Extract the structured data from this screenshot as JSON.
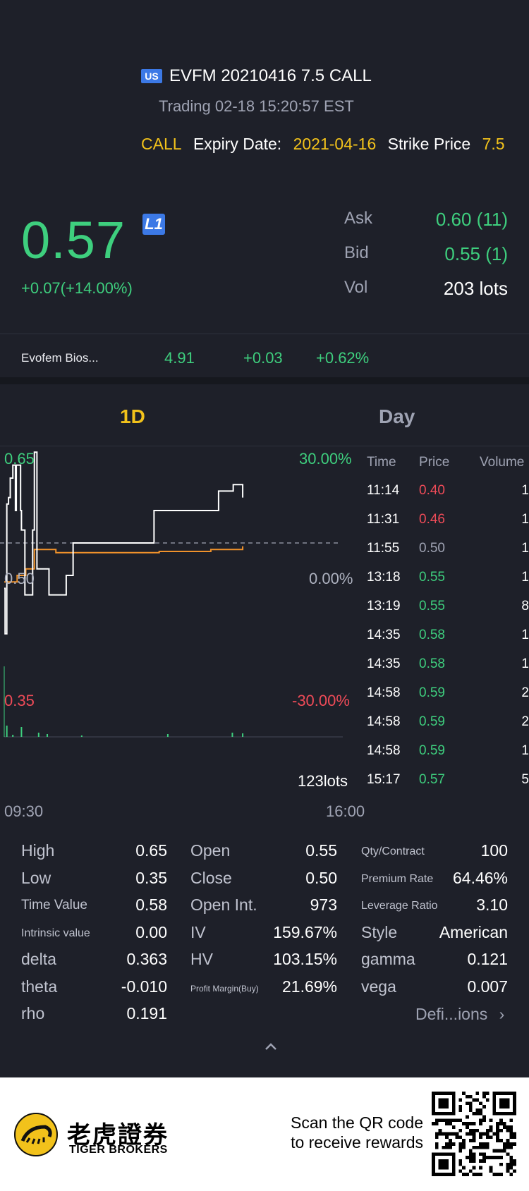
{
  "header": {
    "market_badge": "US",
    "title": "EVFM 20210416 7.5 CALL",
    "trading_status": "Trading  02-18 15:20:57 EST",
    "option_type": "CALL",
    "expiry_label": "Expiry Date:",
    "expiry_value": "2021-04-16",
    "strike_label": "Strike Price",
    "strike_value": "7.5"
  },
  "quote": {
    "price": "0.57",
    "level_badge": "L1",
    "change": "+0.07(+14.00%)",
    "ask_label": "Ask",
    "ask_value": "0.60 (11)",
    "bid_label": "Bid",
    "bid_value": "0.55 (1)",
    "vol_label": "Vol",
    "vol_value": "203 lots"
  },
  "underlying": {
    "name": "Evofem Bios...",
    "price": "4.91",
    "change": "+0.03",
    "change_pct": "+0.62%"
  },
  "tabs": {
    "intraday": "1D",
    "day": "Day"
  },
  "chart": {
    "y_high": "0.65",
    "y_low": "0.35",
    "y_mid": "0.50",
    "pct_high": "30.00%",
    "pct_mid": "0.00%",
    "pct_low": "-30.00%",
    "volume_label": "123lots",
    "time_start": "09:30",
    "time_end": "16:00"
  },
  "chart_data": {
    "type": "line",
    "x_range": [
      "09:30",
      "16:00"
    ],
    "ylim": [
      0.35,
      0.65
    ],
    "reference": 0.5,
    "series": [
      {
        "values_desc": "price",
        "points": [
          [
            "09:30",
            0.43
          ],
          [
            "09:31",
            0.36
          ],
          [
            "09:32",
            0.36
          ],
          [
            "09:33",
            0.56
          ],
          [
            "09:35",
            0.57
          ],
          [
            "09:37",
            0.6
          ],
          [
            "09:38",
            0.6
          ],
          [
            "09:40",
            0.62
          ],
          [
            "09:42",
            0.62
          ],
          [
            "09:43",
            0.55
          ],
          [
            "09:44",
            0.62
          ],
          [
            "09:48",
            0.62
          ],
          [
            "09:49",
            0.55
          ],
          [
            "09:50",
            0.52
          ],
          [
            "09:54",
            0.42
          ],
          [
            "09:56",
            0.42
          ],
          [
            "09:58",
            0.42
          ],
          [
            "10:03",
            0.52
          ],
          [
            "10:05",
            0.64
          ],
          [
            "10:08",
            0.46
          ],
          [
            "10:18",
            0.46
          ],
          [
            "10:22",
            0.42
          ],
          [
            "10:38",
            0.42
          ],
          [
            "10:42",
            0.45
          ],
          [
            "10:49",
            0.45
          ],
          [
            "10:50",
            0.5
          ],
          [
            "11:31",
            0.5
          ],
          [
            "12:23",
            0.5
          ],
          [
            "12:24",
            0.55
          ],
          [
            "13:38",
            0.55
          ],
          [
            "13:39",
            0.58
          ],
          [
            "13:55",
            0.58
          ],
          [
            "13:56",
            0.59
          ],
          [
            "14:04",
            0.59
          ],
          [
            "14:07",
            0.57
          ]
        ]
      },
      {
        "values_desc": "average",
        "points": [
          [
            "09:30",
            0.44
          ],
          [
            "09:35",
            0.44
          ],
          [
            "09:45",
            0.45
          ],
          [
            "09:55",
            0.46
          ],
          [
            "10:05",
            0.49
          ],
          [
            "10:30",
            0.485
          ],
          [
            "11:30",
            0.485
          ],
          [
            "12:30",
            0.487
          ],
          [
            "13:30",
            0.49
          ],
          [
            "14:07",
            0.495
          ]
        ]
      }
    ]
  },
  "ticks": {
    "headers": [
      "Time",
      "Price",
      "Volume"
    ],
    "rows": [
      {
        "time": "11:14",
        "price": "0.40",
        "vol": "1",
        "dir": "down"
      },
      {
        "time": "11:31",
        "price": "0.46",
        "vol": "1",
        "dir": "down"
      },
      {
        "time": "11:55",
        "price": "0.50",
        "vol": "1",
        "dir": "flat"
      },
      {
        "time": "13:18",
        "price": "0.55",
        "vol": "1",
        "dir": "up"
      },
      {
        "time": "13:19",
        "price": "0.55",
        "vol": "8",
        "dir": "up"
      },
      {
        "time": "14:35",
        "price": "0.58",
        "vol": "1",
        "dir": "up"
      },
      {
        "time": "14:35",
        "price": "0.58",
        "vol": "1",
        "dir": "up"
      },
      {
        "time": "14:58",
        "price": "0.59",
        "vol": "2",
        "dir": "up"
      },
      {
        "time": "14:58",
        "price": "0.59",
        "vol": "2",
        "dir": "up"
      },
      {
        "time": "14:58",
        "price": "0.59",
        "vol": "1",
        "dir": "up"
      },
      {
        "time": "15:17",
        "price": "0.57",
        "vol": "5",
        "dir": "up"
      }
    ]
  },
  "stats": {
    "col1": [
      {
        "label": "High",
        "value": "0.65"
      },
      {
        "label": "Low",
        "value": "0.35"
      },
      {
        "label": "Time Value",
        "value": "0.58"
      },
      {
        "label": "Intrinsic value",
        "value": "0.00"
      },
      {
        "label": "delta",
        "value": "0.363"
      },
      {
        "label": "theta",
        "value": "-0.010"
      },
      {
        "label": "rho",
        "value": "0.191"
      }
    ],
    "col2": [
      {
        "label": "Open",
        "value": "0.55"
      },
      {
        "label": "Close",
        "value": "0.50"
      },
      {
        "label": "Open Int.",
        "value": "973"
      },
      {
        "label": "IV",
        "value": "159.67%"
      },
      {
        "label": "HV",
        "value": "103.15%"
      },
      {
        "label": "Profit Margin(Buy)",
        "value": "21.69%"
      }
    ],
    "col3": [
      {
        "label": "Qty/Contract",
        "value": "100"
      },
      {
        "label": "Premium Rate",
        "value": "64.46%"
      },
      {
        "label": "Leverage Ratio",
        "value": "3.10"
      },
      {
        "label": "Style",
        "value": "American"
      },
      {
        "label": "gamma",
        "value": "0.121"
      },
      {
        "label": "vega",
        "value": "0.007"
      }
    ],
    "definitions_link": "Defi...ions"
  },
  "footer": {
    "brand_cn": "老虎證券",
    "brand_en": "TIGER BROKERS",
    "scan_line1": "Scan the QR code",
    "scan_line2": "to receive rewards"
  },
  "colors": {
    "up": "#3ecf7e",
    "down": "#ef4b58",
    "flat": "#9fa3b3",
    "accent": "#f2c21b",
    "background": "#1e2029"
  }
}
